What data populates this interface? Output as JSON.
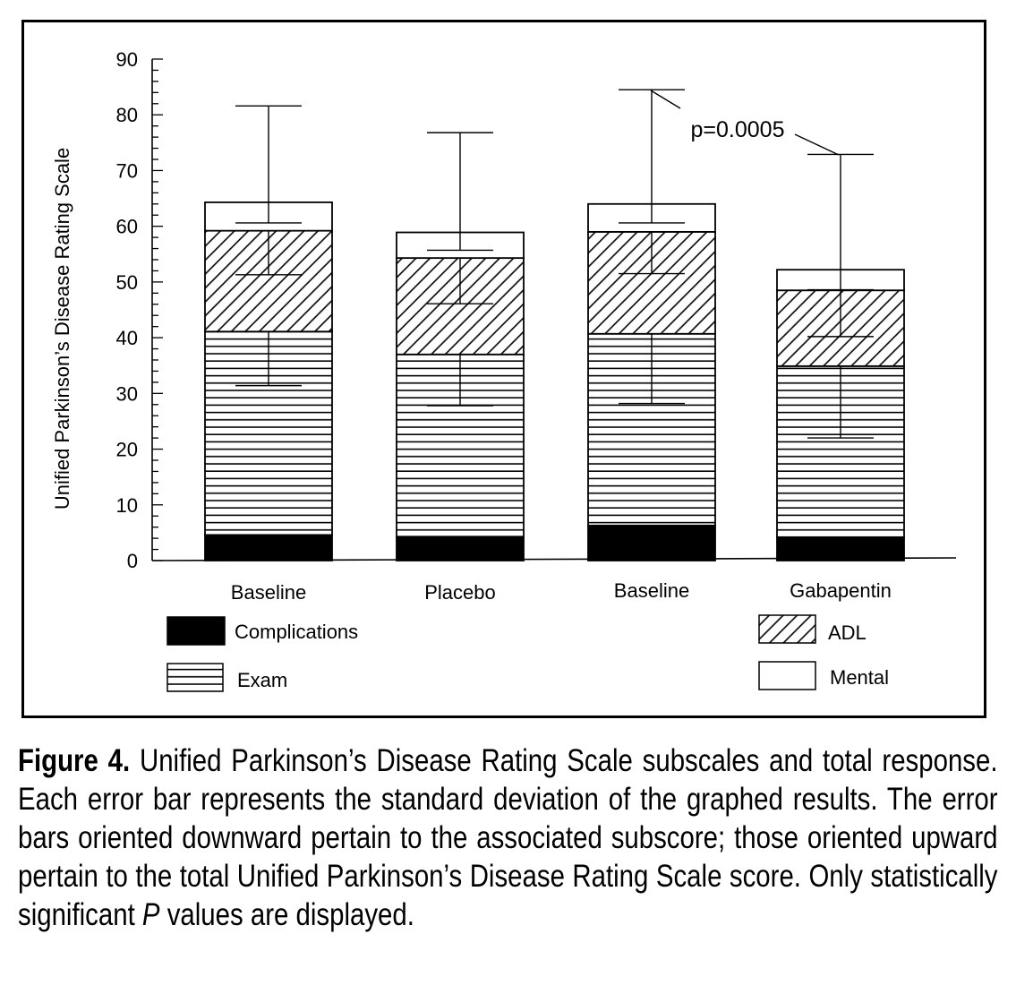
{
  "chart_data": {
    "type": "bar",
    "stacked": true,
    "ylabel": "Unified Parkinson’s Disease Rating Scale",
    "ylim": [
      0,
      90
    ],
    "yticks": [
      0,
      10,
      20,
      30,
      40,
      50,
      60,
      70,
      80,
      90
    ],
    "yticks_text": [
      "0",
      "10",
      "20",
      "30",
      "40",
      "50",
      "60",
      "70",
      "80",
      "90"
    ],
    "categories": [
      "Baseline",
      "Placebo",
      "Baseline",
      "Gabapentin"
    ],
    "series": [
      {
        "name": "Complications",
        "pattern": "solid-black",
        "values": [
          4.6,
          4.3,
          6.3,
          4.2
        ]
      },
      {
        "name": "Exam",
        "pattern": "horizontal-lines",
        "values": [
          36.5,
          32.7,
          34.4,
          30.7
        ]
      },
      {
        "name": "ADL",
        "pattern": "diagonal-hatch",
        "values": [
          18.1,
          17.3,
          18.3,
          13.6
        ]
      },
      {
        "name": "Mental",
        "pattern": "white",
        "values": [
          5.1,
          4.6,
          5.0,
          3.7
        ]
      }
    ],
    "error_down": [
      [
        31.4,
        27.8,
        28.2,
        22.0
      ],
      [
        51.3,
        46.1,
        51.5,
        40.2
      ],
      [
        60.6,
        55.7,
        60.6,
        48.6
      ]
    ],
    "error_up": [
      81.6,
      76.8,
      84.5,
      72.9
    ],
    "annotation": {
      "text": "p=0.0005",
      "between": [
        2,
        3
      ]
    },
    "legend": {
      "placement": "bottom",
      "items": [
        "Complications",
        "Exam",
        "ADL",
        "Mental"
      ]
    }
  },
  "caption": {
    "lead": "Figure 4.",
    "text_1": " Unified Parkinson’s Disease Rating Scale subscales and total response. Each error bar represents the standard deviation of the graphed results. The error bars oriented downward pertain to the associated subscore; those oriented upward pertain to the total Unified Parkinson’s Disease Rating Scale score. Only statistically significant ",
    "italic": "P",
    "text_2": " values are displayed."
  }
}
